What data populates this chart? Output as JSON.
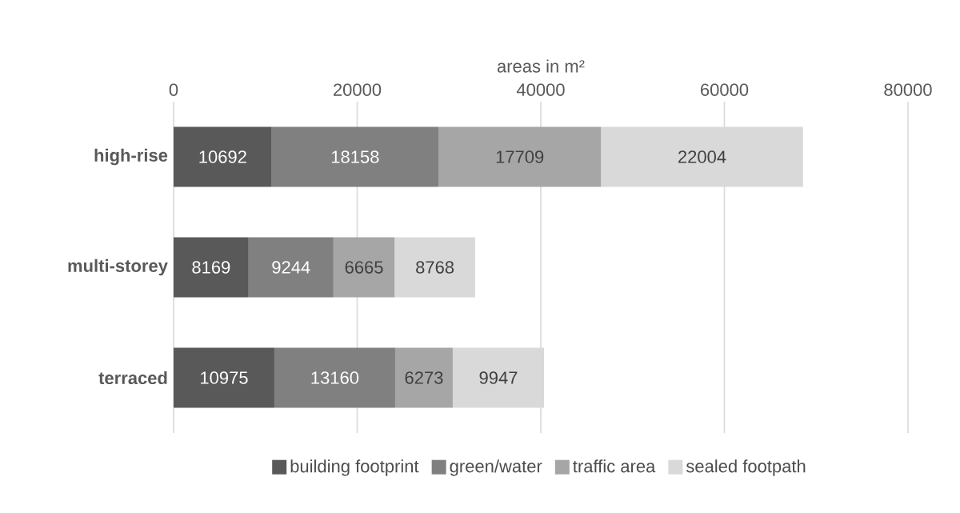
{
  "chart_data": {
    "type": "bar",
    "orientation": "horizontal",
    "stacked": true,
    "xlabel": "areas in m²",
    "categories": [
      "high-rise",
      "multi-storey",
      "terraced"
    ],
    "series": [
      {
        "name": "building footprint",
        "color": "#595959",
        "values": [
          10692,
          8169,
          10975
        ]
      },
      {
        "name": "green/water",
        "color": "#808080",
        "values": [
          18158,
          9244,
          13160
        ]
      },
      {
        "name": "traffic area",
        "color": "#a6a6a6",
        "values": [
          17709,
          6665,
          6273
        ]
      },
      {
        "name": "sealed footpath",
        "color": "#d9d9d9",
        "values": [
          22004,
          8768,
          9947
        ]
      }
    ],
    "xlim": [
      0,
      80000
    ],
    "xticks": [
      0,
      20000,
      40000,
      60000,
      80000
    ],
    "grid": "x",
    "legend": "bottom",
    "data_labels": true
  }
}
